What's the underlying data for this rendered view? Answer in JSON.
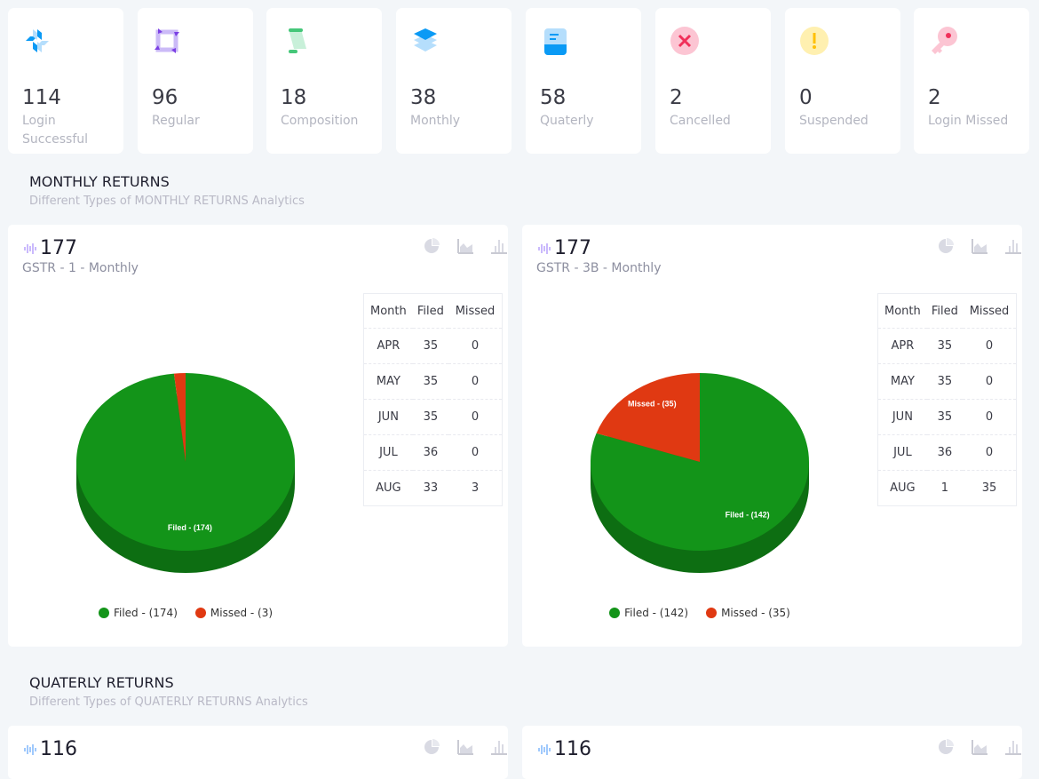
{
  "stats": [
    {
      "value": "114",
      "label": "Login Successful",
      "icon": "snowflake-icon"
    },
    {
      "value": "96",
      "label": "Regular",
      "icon": "refresh-square-icon"
    },
    {
      "value": "18",
      "label": "Composition",
      "icon": "scroll-icon"
    },
    {
      "value": "38",
      "label": "Monthly",
      "icon": "layers-icon"
    },
    {
      "value": "58",
      "label": "Quaterly",
      "icon": "book-icon"
    },
    {
      "value": "2",
      "label": "Cancelled",
      "icon": "x-circle-icon"
    },
    {
      "value": "0",
      "label": "Suspended",
      "icon": "exclamation-circle-icon"
    },
    {
      "value": "2",
      "label": "Login Missed",
      "icon": "key-icon"
    }
  ],
  "monthly": {
    "title": "MONTHLY RETURNS",
    "subtitle": "Different Types of MONTHLY RETURNS Analytics"
  },
  "quarterly": {
    "title": "QUATERLY RETURNS",
    "subtitle": "Different Types of QUATERLY RETURNS Analytics"
  },
  "table_headers": [
    "Month",
    "Filed",
    "Missed"
  ],
  "colors": {
    "filed": "#139419",
    "filed_dark": "#0d6e12",
    "missed": "#e03912"
  },
  "chart_data": [
    {
      "type": "pie",
      "total": "177",
      "title": "GSTR - 1 - Monthly",
      "labels": [
        "Filed - (174)",
        "Missed - (3)"
      ],
      "values": [
        174,
        3
      ],
      "rows": [
        [
          "APR",
          "35",
          "0"
        ],
        [
          "MAY",
          "35",
          "0"
        ],
        [
          "JUN",
          "35",
          "0"
        ],
        [
          "JUL",
          "36",
          "0"
        ],
        [
          "AUG",
          "33",
          "3"
        ]
      ]
    },
    {
      "type": "pie",
      "total": "177",
      "title": "GSTR - 3B - Monthly",
      "labels": [
        "Filed - (142)",
        "Missed - (35)"
      ],
      "values": [
        142,
        35
      ],
      "rows": [
        [
          "APR",
          "35",
          "0"
        ],
        [
          "MAY",
          "35",
          "0"
        ],
        [
          "JUN",
          "35",
          "0"
        ],
        [
          "JUL",
          "36",
          "0"
        ],
        [
          "AUG",
          "1",
          "35"
        ]
      ]
    }
  ],
  "quarterly_panels": [
    {
      "total": "116"
    },
    {
      "total": "116"
    }
  ]
}
